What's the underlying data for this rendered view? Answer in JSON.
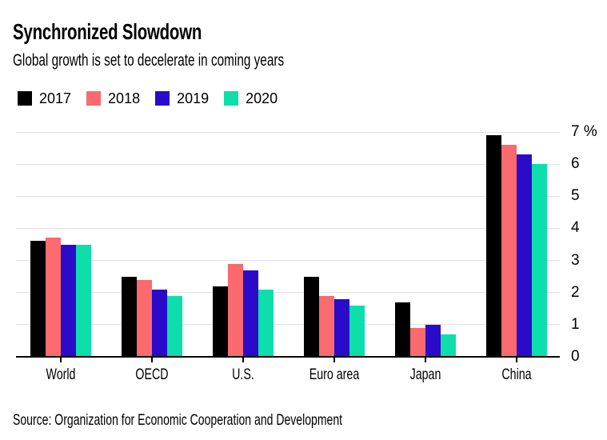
{
  "header": {
    "title": "Synchronized Slowdown",
    "subtitle": "Global growth is set to decelerate in coming years"
  },
  "chart_data": {
    "type": "bar",
    "title": "Synchronized Slowdown",
    "subtitle": "Global growth is set to decelerate in coming years",
    "categories": [
      "World",
      "OECD",
      "U.S.",
      "Euro area",
      "Japan",
      "China"
    ],
    "series": [
      {
        "name": "2017",
        "color": "#000000",
        "values": [
          3.6,
          2.5,
          2.2,
          2.5,
          1.7,
          6.9
        ]
      },
      {
        "name": "2018",
        "color": "#FA6A6E",
        "values": [
          3.7,
          2.4,
          2.9,
          1.9,
          0.9,
          6.6
        ]
      },
      {
        "name": "2019",
        "color": "#2B0BC9",
        "values": [
          3.5,
          2.1,
          2.7,
          1.8,
          1.0,
          6.3
        ]
      },
      {
        "name": "2020",
        "color": "#0EDEAC",
        "values": [
          3.5,
          1.9,
          2.1,
          1.6,
          0.7,
          6.0
        ]
      }
    ],
    "ylim": [
      0,
      7
    ],
    "yticks": [
      0,
      1,
      2,
      3,
      4,
      5,
      6,
      7
    ],
    "ytick_labels": [
      "0",
      "1",
      "2",
      "3",
      "4",
      "5",
      "6",
      "7 %"
    ],
    "unit": "%",
    "legend_position": "top-left",
    "grid": "horizontal",
    "axis_side": "right"
  },
  "colors": {
    "background": "#FFFFFF",
    "grid": "#E3E3E3",
    "axis": "#000000",
    "text": "#000000"
  },
  "footer": {
    "source": "Source: Organization for Economic Cooperation and Development"
  }
}
